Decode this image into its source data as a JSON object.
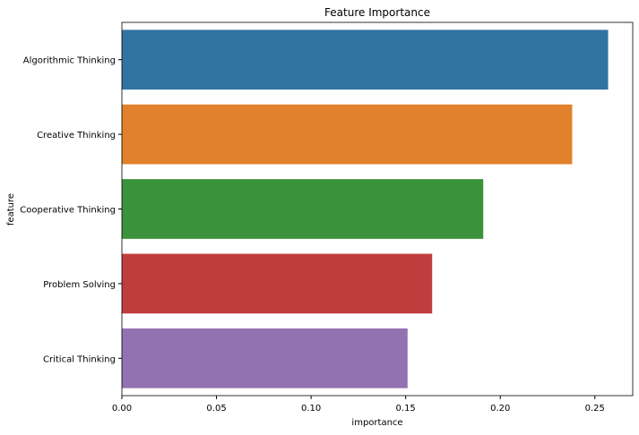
{
  "chart_data": {
    "type": "barh",
    "title": "Feature Importance",
    "x_label": "importance",
    "y_label": "feature",
    "categories": [
      "Algorithmic Thinking",
      "Creative Thinking",
      "Cooperative Thinking",
      "Problem Solving",
      "Critical Thinking"
    ],
    "values": [
      0.257,
      0.238,
      0.191,
      0.164,
      0.151
    ],
    "colors": [
      "#3274a1",
      "#e1812c",
      "#3a923a",
      "#c03d3e",
      "#9372b2"
    ],
    "xlim": [
      0,
      0.27
    ],
    "xticks": [
      {
        "value": 0,
        "label": "0.00"
      },
      {
        "value": 0.05,
        "label": "0.05"
      },
      {
        "value": 0.1,
        "label": "0.10"
      },
      {
        "value": 0.15,
        "label": "0.15"
      },
      {
        "value": 0.2,
        "label": "0.20"
      },
      {
        "value": 0.25,
        "label": "0.25"
      }
    ]
  }
}
